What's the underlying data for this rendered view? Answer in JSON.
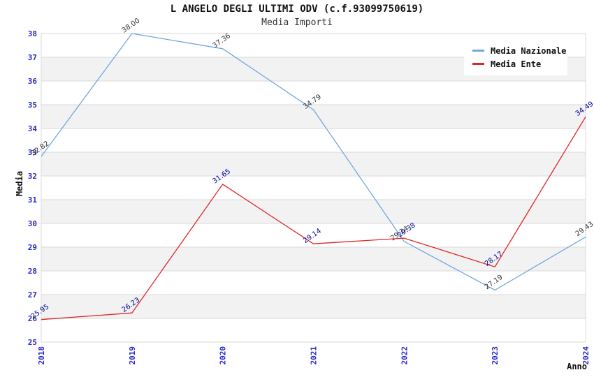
{
  "chart_data": {
    "type": "line",
    "title": "L ANGELO DEGLI ULTIMI ODV (c.f.93099750619)",
    "subtitle": "Media Importi",
    "xlabel": "Anno",
    "ylabel": "Media",
    "categories": [
      "2018",
      "2019",
      "2020",
      "2021",
      "2022",
      "2023",
      "2024"
    ],
    "ylim": [
      25,
      38
    ],
    "ytick_step": 1,
    "grid": "horizontal gridlines with alternating shaded bands",
    "legend_position": "top-right",
    "colors": {
      "band": "#F2F2F2",
      "grid": "#D9D9D9",
      "axis_ticks": "#2929CC",
      "background": "#FFFFFF"
    },
    "series": [
      {
        "name": "Media Nazionale",
        "color": "#71A8DF",
        "label_color": "#333333",
        "values": [
          32.82,
          38.0,
          37.36,
          34.79,
          29.24,
          27.19,
          29.43
        ]
      },
      {
        "name": "Media Ente",
        "color": "#E12626",
        "label_color": "#000099",
        "values": [
          25.95,
          26.23,
          31.65,
          29.14,
          29.38,
          28.17,
          34.49
        ]
      }
    ]
  }
}
